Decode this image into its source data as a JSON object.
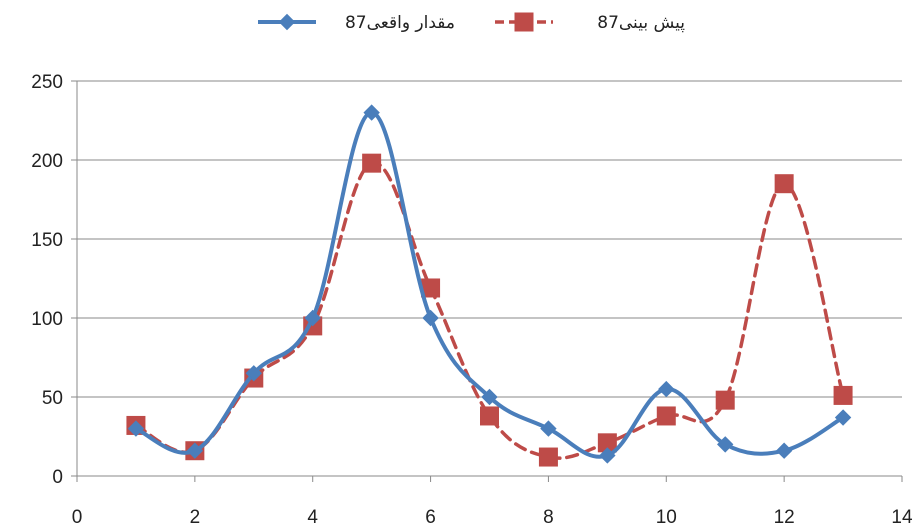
{
  "chart_data": {
    "type": "line",
    "xlim": [
      0,
      14
    ],
    "ylim": [
      0,
      250
    ],
    "x_ticks": [
      0,
      2,
      4,
      6,
      8,
      10,
      12,
      14
    ],
    "y_ticks": [
      0,
      50,
      100,
      150,
      200,
      250
    ],
    "x_tick_labels": [
      "0",
      "2",
      "4",
      "6",
      "8",
      "10",
      "12",
      "14"
    ],
    "y_tick_labels": [
      "0",
      "50",
      "100",
      "150",
      "200",
      "250"
    ],
    "grid": {
      "horizontal": true,
      "vertical": false
    },
    "legend_position": "top",
    "x": [
      1,
      2,
      3,
      4,
      5,
      6,
      7,
      8,
      9,
      10,
      11,
      12,
      13
    ],
    "series": [
      {
        "name": "87مقدار واقعی",
        "color": "#4a7ebb",
        "line_style": "solid",
        "marker": "diamond",
        "values": [
          30,
          16,
          65,
          100,
          230,
          100,
          50,
          30,
          13,
          55,
          20,
          16,
          37
        ]
      },
      {
        "name": "87پیش بینی",
        "color": "#be4b48",
        "line_style": "dashed",
        "marker": "square",
        "values": [
          32,
          16,
          62,
          95,
          198,
          119,
          38,
          12,
          21,
          38,
          48,
          185,
          51
        ]
      }
    ]
  }
}
